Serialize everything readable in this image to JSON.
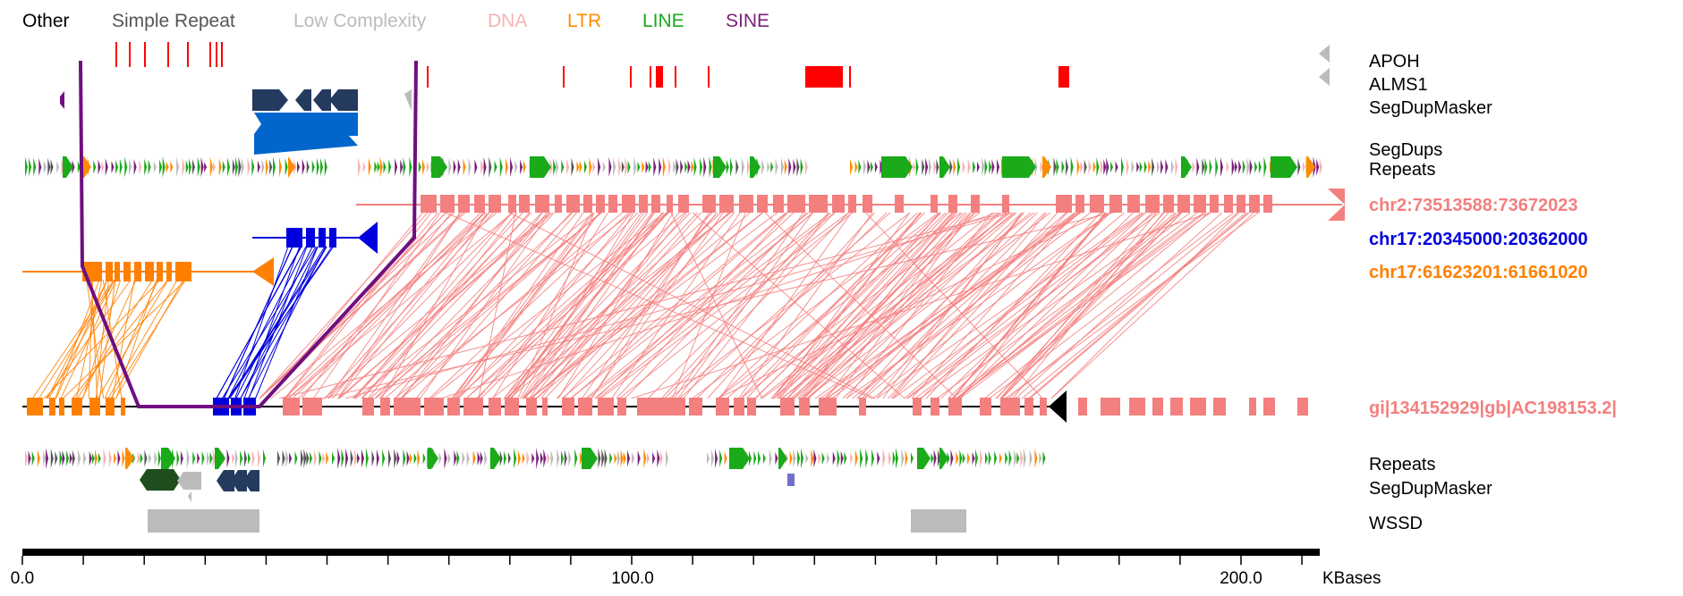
{
  "legend": [
    {
      "label": "Other",
      "color": "#000000"
    },
    {
      "label": "Simple Repeat",
      "color": "#555555"
    },
    {
      "label": "Low Complexity",
      "color": "#bbbbbb"
    },
    {
      "label": "DNA",
      "color": "#f7b3b3"
    },
    {
      "label": "LTR",
      "color": "#ff8c00"
    },
    {
      "label": "LINE",
      "color": "#1aaa1a"
    },
    {
      "label": "SINE",
      "color": "#7a1f7a"
    }
  ],
  "track_labels": {
    "apoh": "APOH",
    "alms1": "ALMS1",
    "segdupmasker_top": "SegDupMasker",
    "segdups": "SegDups",
    "repeats_top": "Repeats",
    "chr2": "chr2:73513588:73672023",
    "chr17a": "chr17:20345000:20362000",
    "chr17b": "chr17:61623201:61661020",
    "gi": "gi|134152929|gb|AC198153.2|",
    "repeats_bottom": "Repeats",
    "segdupmasker_bottom": "SegDupMasker",
    "wssd": "WSSD"
  },
  "colors": {
    "chr2": "#f47f7f",
    "chr17a": "#0000dd",
    "chr17b": "#ff8000",
    "gi": "#f47f7f",
    "gene_red": "#ff0000",
    "segdup_blue": "#0066cc",
    "segdupmasker_navy": "#243a5e",
    "wssd_gray": "#bbbbbb",
    "purple_path": "#6f0f7f",
    "gray_arrow": "#bbbbbb"
  },
  "axis": {
    "unit": "KBases",
    "min": 0,
    "max": 213,
    "ticks": [
      0,
      10,
      20,
      30,
      40,
      50,
      60,
      70,
      80,
      90,
      100,
      110,
      120,
      130,
      140,
      150,
      160,
      170,
      180,
      190,
      200,
      210
    ],
    "tick_labels": [
      "0.0",
      "100.0",
      "200.0"
    ]
  }
}
